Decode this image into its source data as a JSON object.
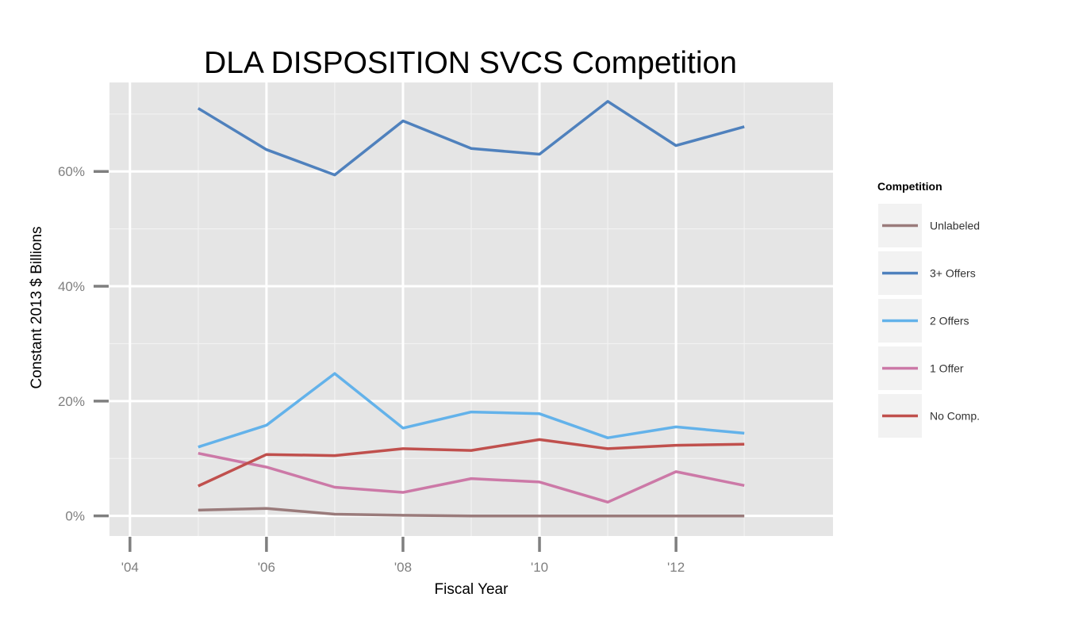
{
  "chart_data": {
    "type": "line",
    "title": "DLA DISPOSITION SVCS Competition",
    "xlabel": "Fiscal Year",
    "ylabel": "Constant 2013 $ Billions",
    "x": [
      2005,
      2006,
      2007,
      2008,
      2009,
      2010,
      2011,
      2012,
      2013
    ],
    "xlim": [
      2003.7,
      2014.3
    ],
    "ylim": [
      -0.035,
      0.755
    ],
    "x_ticks": [
      {
        "value": 2004,
        "label": "'04"
      },
      {
        "value": 2006,
        "label": "'06"
      },
      {
        "value": 2008,
        "label": "'08"
      },
      {
        "value": 2010,
        "label": "'10"
      },
      {
        "value": 2012,
        "label": "'12"
      }
    ],
    "y_ticks": [
      {
        "value": 0.0,
        "label": "0%"
      },
      {
        "value": 0.2,
        "label": "20%"
      },
      {
        "value": 0.4,
        "label": "40%"
      },
      {
        "value": 0.6,
        "label": "60%"
      }
    ],
    "grid": true,
    "legend": {
      "title": "Competition",
      "position": "right"
    },
    "series": [
      {
        "name": "Unlabeled",
        "color": "#9a7b7b",
        "values": [
          0.01,
          0.013,
          0.003,
          0.001,
          0.0,
          0.0,
          0.0,
          0.0,
          0.0
        ]
      },
      {
        "name": "3+ Offers",
        "color": "#4f81bd",
        "values": [
          0.71,
          0.638,
          0.594,
          0.688,
          0.64,
          0.63,
          0.722,
          0.645,
          0.678
        ]
      },
      {
        "name": "2 Offers",
        "color": "#63b2ea",
        "values": [
          0.12,
          0.158,
          0.248,
          0.153,
          0.181,
          0.178,
          0.136,
          0.155,
          0.144
        ]
      },
      {
        "name": "1 Offer",
        "color": "#cc79a7",
        "values": [
          0.109,
          0.085,
          0.05,
          0.041,
          0.065,
          0.059,
          0.024,
          0.077,
          0.053
        ]
      },
      {
        "name": "No Comp.",
        "color": "#c0504d",
        "values": [
          0.052,
          0.107,
          0.105,
          0.117,
          0.114,
          0.133,
          0.117,
          0.123,
          0.125
        ]
      }
    ]
  }
}
